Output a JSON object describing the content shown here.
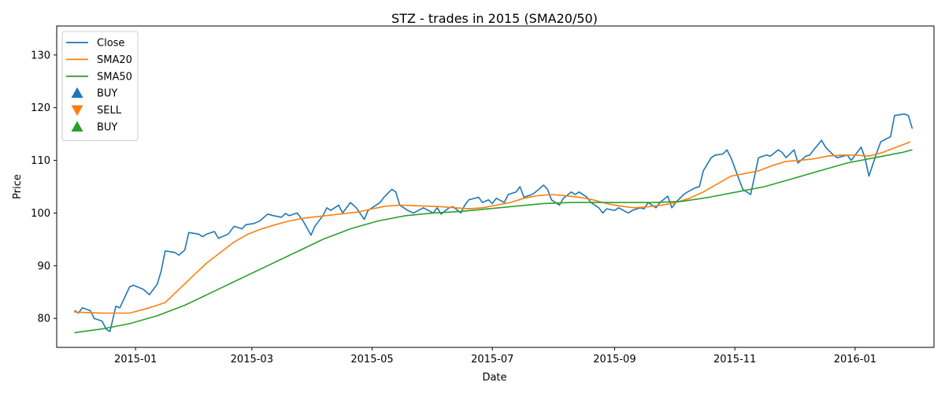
{
  "chart_data": {
    "type": "line",
    "title": "STZ - trades in 2015 (SMA20/50)",
    "xlabel": "Date",
    "ylabel": "Price",
    "x_ticks": [
      "2015-01",
      "2015-03",
      "2015-05",
      "2015-07",
      "2015-09",
      "2015-11",
      "2016-01"
    ],
    "y_ticks": [
      80,
      90,
      100,
      110,
      120,
      130
    ],
    "xlim": [
      "2014-11-22",
      "2016-02-10"
    ],
    "ylim": [
      74.5,
      135.5
    ],
    "grid": false,
    "legend_position": "top-left",
    "series": [
      {
        "name": "Close",
        "color": "#1f77b4",
        "points": [
          [
            "2014-12-01",
            81.5
          ],
          [
            "2014-12-03",
            81.0
          ],
          [
            "2014-12-05",
            82.0
          ],
          [
            "2014-12-09",
            81.5
          ],
          [
            "2014-12-11",
            80.0
          ],
          [
            "2014-12-15",
            79.5
          ],
          [
            "2014-12-17",
            78.0
          ],
          [
            "2014-12-19",
            77.5
          ],
          [
            "2014-12-22",
            82.3
          ],
          [
            "2014-12-24",
            82.0
          ],
          [
            "2014-12-29",
            86.0
          ],
          [
            "2014-12-31",
            86.3
          ],
          [
            "2015-01-05",
            85.5
          ],
          [
            "2015-01-08",
            84.5
          ],
          [
            "2015-01-12",
            86.5
          ],
          [
            "2015-01-14",
            89.0
          ],
          [
            "2015-01-16",
            92.8
          ],
          [
            "2015-01-21",
            92.5
          ],
          [
            "2015-01-23",
            92.0
          ],
          [
            "2015-01-26",
            93.0
          ],
          [
            "2015-01-28",
            96.3
          ],
          [
            "2015-02-02",
            96.0
          ],
          [
            "2015-02-04",
            95.5
          ],
          [
            "2015-02-06",
            96.0
          ],
          [
            "2015-02-10",
            96.5
          ],
          [
            "2015-02-12",
            95.2
          ],
          [
            "2015-02-17",
            96.0
          ],
          [
            "2015-02-20",
            97.5
          ],
          [
            "2015-02-24",
            97.0
          ],
          [
            "2015-02-26",
            97.8
          ],
          [
            "2015-03-02",
            98.0
          ],
          [
            "2015-03-05",
            98.5
          ],
          [
            "2015-03-09",
            99.8
          ],
          [
            "2015-03-12",
            99.5
          ],
          [
            "2015-03-16",
            99.2
          ],
          [
            "2015-03-18",
            99.9
          ],
          [
            "2015-03-20",
            99.5
          ],
          [
            "2015-03-24",
            100.0
          ],
          [
            "2015-03-27",
            98.5
          ],
          [
            "2015-03-31",
            95.8
          ],
          [
            "2015-04-02",
            97.5
          ],
          [
            "2015-04-06",
            99.5
          ],
          [
            "2015-04-08",
            101.0
          ],
          [
            "2015-04-10",
            100.5
          ],
          [
            "2015-04-14",
            101.5
          ],
          [
            "2015-04-16",
            100.0
          ],
          [
            "2015-04-20",
            102.0
          ],
          [
            "2015-04-23",
            101.0
          ],
          [
            "2015-04-27",
            98.8
          ],
          [
            "2015-04-29",
            100.5
          ],
          [
            "2015-05-01",
            101.0
          ],
          [
            "2015-05-05",
            102.0
          ],
          [
            "2015-05-07",
            103.0
          ],
          [
            "2015-05-11",
            104.5
          ],
          [
            "2015-05-13",
            104.0
          ],
          [
            "2015-05-15",
            101.5
          ],
          [
            "2015-05-19",
            100.5
          ],
          [
            "2015-05-22",
            100.0
          ],
          [
            "2015-05-27",
            101.0
          ],
          [
            "2015-06-01",
            100.0
          ],
          [
            "2015-06-03",
            101.0
          ],
          [
            "2015-06-05",
            99.8
          ],
          [
            "2015-06-09",
            101.0
          ],
          [
            "2015-06-11",
            101.2
          ],
          [
            "2015-06-15",
            100.0
          ],
          [
            "2015-06-17",
            101.5
          ],
          [
            "2015-06-19",
            102.5
          ],
          [
            "2015-06-24",
            103.0
          ],
          [
            "2015-06-26",
            102.0
          ],
          [
            "2015-06-29",
            102.5
          ],
          [
            "2015-07-01",
            101.8
          ],
          [
            "2015-07-03",
            102.8
          ],
          [
            "2015-07-07",
            102.0
          ],
          [
            "2015-07-09",
            103.5
          ],
          [
            "2015-07-13",
            104.0
          ],
          [
            "2015-07-15",
            105.0
          ],
          [
            "2015-07-17",
            103.0
          ],
          [
            "2015-07-21",
            103.5
          ],
          [
            "2015-07-23",
            104.0
          ],
          [
            "2015-07-27",
            105.3
          ],
          [
            "2015-07-29",
            104.5
          ],
          [
            "2015-07-31",
            102.5
          ],
          [
            "2015-08-04",
            101.5
          ],
          [
            "2015-08-06",
            102.8
          ],
          [
            "2015-08-10",
            104.0
          ],
          [
            "2015-08-12",
            103.5
          ],
          [
            "2015-08-14",
            104.0
          ],
          [
            "2015-08-18",
            103.0
          ],
          [
            "2015-08-20",
            102.0
          ],
          [
            "2015-08-24",
            101.0
          ],
          [
            "2015-08-26",
            100.0
          ],
          [
            "2015-08-28",
            100.8
          ],
          [
            "2015-09-01",
            100.5
          ],
          [
            "2015-09-03",
            101.0
          ],
          [
            "2015-09-08",
            100.0
          ],
          [
            "2015-09-10",
            100.5
          ],
          [
            "2015-09-14",
            101.0
          ],
          [
            "2015-09-16",
            100.8
          ],
          [
            "2015-09-18",
            102.0
          ],
          [
            "2015-09-22",
            101.0
          ],
          [
            "2015-09-24",
            102.0
          ],
          [
            "2015-09-28",
            103.2
          ],
          [
            "2015-09-30",
            101.0
          ],
          [
            "2015-10-02",
            102.0
          ],
          [
            "2015-10-06",
            103.5
          ],
          [
            "2015-10-08",
            104.0
          ],
          [
            "2015-10-12",
            104.8
          ],
          [
            "2015-10-14",
            105.0
          ],
          [
            "2015-10-16",
            108.0
          ],
          [
            "2015-10-20",
            110.5
          ],
          [
            "2015-10-22",
            111.0
          ],
          [
            "2015-10-26",
            111.2
          ],
          [
            "2015-10-28",
            112.0
          ],
          [
            "2015-10-30",
            110.5
          ],
          [
            "2015-11-03",
            106.5
          ],
          [
            "2015-11-05",
            104.5
          ],
          [
            "2015-11-09",
            103.5
          ],
          [
            "2015-11-11",
            107.0
          ],
          [
            "2015-11-13",
            110.5
          ],
          [
            "2015-11-17",
            111.0
          ],
          [
            "2015-11-19",
            110.8
          ],
          [
            "2015-11-23",
            112.0
          ],
          [
            "2015-11-25",
            111.5
          ],
          [
            "2015-11-27",
            110.5
          ],
          [
            "2015-12-01",
            112.0
          ],
          [
            "2015-12-03",
            109.5
          ],
          [
            "2015-12-07",
            110.8
          ],
          [
            "2015-12-09",
            111.0
          ],
          [
            "2015-12-11",
            112.0
          ],
          [
            "2015-12-15",
            113.8
          ],
          [
            "2015-12-17",
            112.5
          ],
          [
            "2015-12-21",
            111.0
          ],
          [
            "2015-12-23",
            110.5
          ],
          [
            "2015-12-28",
            111.0
          ],
          [
            "2015-12-30",
            110.0
          ],
          [
            "2016-01-04",
            112.5
          ],
          [
            "2016-01-06",
            110.5
          ],
          [
            "2016-01-08",
            107.0
          ],
          [
            "2016-01-12",
            111.5
          ],
          [
            "2016-01-14",
            113.5
          ],
          [
            "2016-01-19",
            114.5
          ],
          [
            "2016-01-21",
            118.5
          ],
          [
            "2016-01-26",
            118.8
          ],
          [
            "2016-01-28",
            118.5
          ],
          [
            "2016-01-30",
            116.0
          ]
        ]
      },
      {
        "name": "SMA20",
        "color": "#ff7f0e",
        "points": [
          [
            "2014-12-01",
            81.2
          ],
          [
            "2014-12-15",
            81.0
          ],
          [
            "2014-12-29",
            81.0
          ],
          [
            "2015-01-08",
            82.0
          ],
          [
            "2015-01-16",
            83.0
          ],
          [
            "2015-01-23",
            85.5
          ],
          [
            "2015-01-30",
            88.0
          ],
          [
            "2015-02-06",
            90.5
          ],
          [
            "2015-02-13",
            92.5
          ],
          [
            "2015-02-20",
            94.5
          ],
          [
            "2015-02-27",
            96.0
          ],
          [
            "2015-03-06",
            97.0
          ],
          [
            "2015-03-13",
            97.8
          ],
          [
            "2015-03-20",
            98.5
          ],
          [
            "2015-03-27",
            99.0
          ],
          [
            "2015-04-03",
            99.3
          ],
          [
            "2015-04-10",
            99.6
          ],
          [
            "2015-04-17",
            99.9
          ],
          [
            "2015-04-24",
            100.2
          ],
          [
            "2015-05-01",
            100.8
          ],
          [
            "2015-05-08",
            101.3
          ],
          [
            "2015-05-15",
            101.5
          ],
          [
            "2015-05-22",
            101.4
          ],
          [
            "2015-05-29",
            101.3
          ],
          [
            "2015-06-05",
            101.2
          ],
          [
            "2015-06-12",
            101.0
          ],
          [
            "2015-06-19",
            100.8
          ],
          [
            "2015-06-26",
            101.0
          ],
          [
            "2015-07-03",
            101.5
          ],
          [
            "2015-07-10",
            102.0
          ],
          [
            "2015-07-17",
            102.8
          ],
          [
            "2015-07-24",
            103.3
          ],
          [
            "2015-07-31",
            103.5
          ],
          [
            "2015-08-07",
            103.3
          ],
          [
            "2015-08-14",
            103.0
          ],
          [
            "2015-08-21",
            102.5
          ],
          [
            "2015-08-28",
            101.8
          ],
          [
            "2015-09-04",
            101.3
          ],
          [
            "2015-09-11",
            101.0
          ],
          [
            "2015-09-18",
            101.2
          ],
          [
            "2015-09-25",
            101.5
          ],
          [
            "2015-10-02",
            102.0
          ],
          [
            "2015-10-09",
            102.8
          ],
          [
            "2015-10-16",
            104.0
          ],
          [
            "2015-10-23",
            105.5
          ],
          [
            "2015-10-30",
            107.0
          ],
          [
            "2015-11-06",
            107.5
          ],
          [
            "2015-11-13",
            108.0
          ],
          [
            "2015-11-20",
            109.0
          ],
          [
            "2015-11-27",
            109.8
          ],
          [
            "2015-12-04",
            110.0
          ],
          [
            "2015-12-11",
            110.3
          ],
          [
            "2015-12-18",
            110.8
          ],
          [
            "2015-12-25",
            111.0
          ],
          [
            "2016-01-01",
            111.0
          ],
          [
            "2016-01-08",
            110.8
          ],
          [
            "2016-01-15",
            111.5
          ],
          [
            "2016-01-22",
            112.5
          ],
          [
            "2016-01-29",
            113.5
          ]
        ]
      },
      {
        "name": "SMA50",
        "color": "#2ca02c",
        "points": [
          [
            "2014-12-01",
            77.3
          ],
          [
            "2014-12-15",
            78.0
          ],
          [
            "2014-12-29",
            79.0
          ],
          [
            "2015-01-12",
            80.5
          ],
          [
            "2015-01-26",
            82.5
          ],
          [
            "2015-02-09",
            85.0
          ],
          [
            "2015-02-23",
            87.5
          ],
          [
            "2015-03-09",
            90.0
          ],
          [
            "2015-03-23",
            92.5
          ],
          [
            "2015-04-06",
            95.0
          ],
          [
            "2015-04-20",
            97.0
          ],
          [
            "2015-05-04",
            98.5
          ],
          [
            "2015-05-18",
            99.5
          ],
          [
            "2015-06-01",
            100.0
          ],
          [
            "2015-06-15",
            100.3
          ],
          [
            "2015-06-29",
            100.8
          ],
          [
            "2015-07-13",
            101.3
          ],
          [
            "2015-07-27",
            101.8
          ],
          [
            "2015-08-10",
            102.0
          ],
          [
            "2015-08-24",
            102.0
          ],
          [
            "2015-09-07",
            102.0
          ],
          [
            "2015-09-21",
            102.0
          ],
          [
            "2015-10-05",
            102.2
          ],
          [
            "2015-10-19",
            103.0
          ],
          [
            "2015-11-02",
            104.0
          ],
          [
            "2015-11-16",
            105.0
          ],
          [
            "2015-11-30",
            106.5
          ],
          [
            "2015-12-14",
            108.0
          ],
          [
            "2015-12-28",
            109.5
          ],
          [
            "2016-01-11",
            110.5
          ],
          [
            "2016-01-25",
            111.5
          ],
          [
            "2016-01-30",
            112.0
          ]
        ]
      }
    ],
    "markers": [
      {
        "name": "BUY",
        "shape": "triangle-up",
        "color": "#1f77b4",
        "points": []
      },
      {
        "name": "SELL",
        "shape": "triangle-down",
        "color": "#ff7f0e",
        "points": []
      },
      {
        "name": "BUY",
        "shape": "triangle-up",
        "color": "#2ca02c",
        "points": []
      }
    ]
  }
}
